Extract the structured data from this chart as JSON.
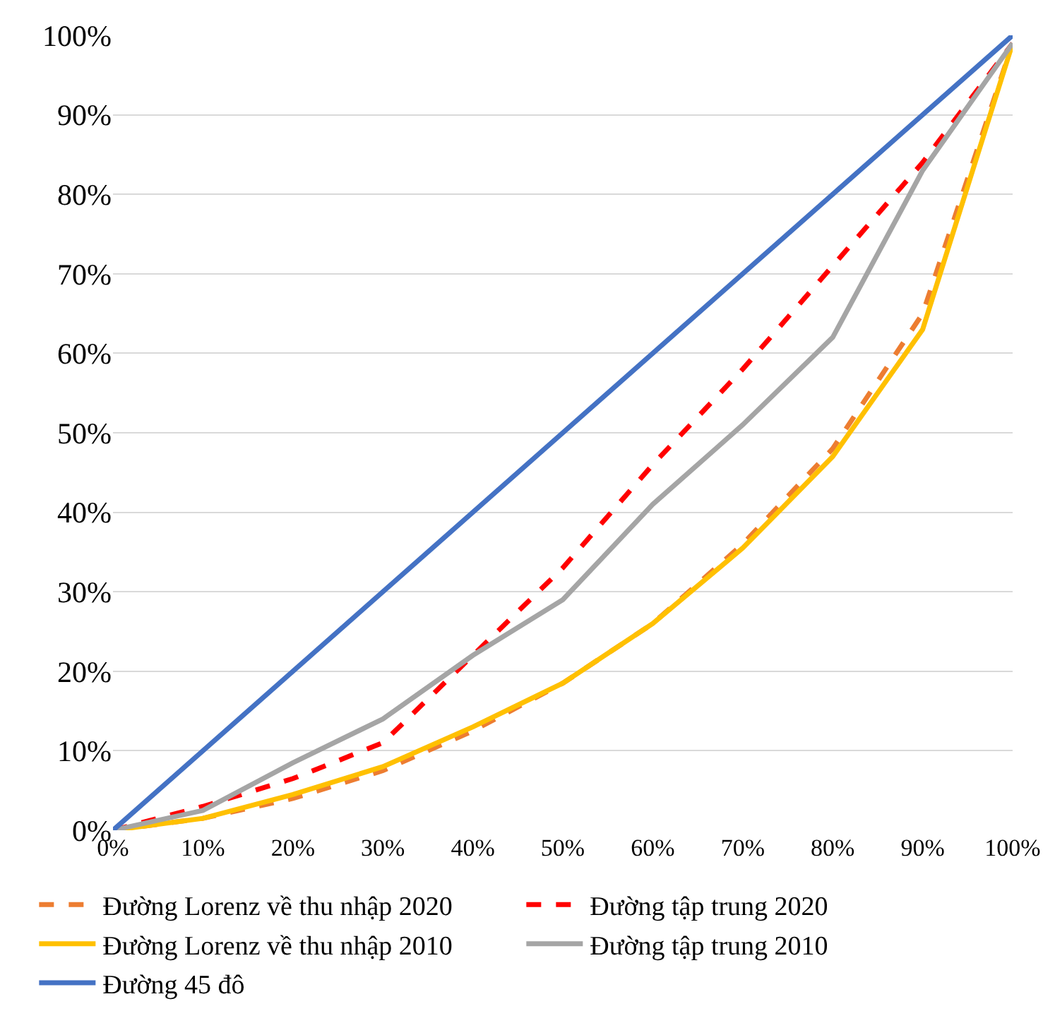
{
  "chart_data": {
    "type": "line",
    "x": [
      0,
      10,
      20,
      30,
      40,
      50,
      60,
      70,
      80,
      90,
      100
    ],
    "series": [
      {
        "name": "Đường Lorenz về thu nhập 2020",
        "color": "#ed7d31",
        "line_style": "dashed",
        "values": [
          0,
          1.5,
          4,
          7.5,
          12.5,
          18.5,
          26,
          36,
          48,
          65,
          99
        ]
      },
      {
        "name": "Đường tập trung 2020",
        "color": "#ff0000",
        "line_style": "dashed",
        "values": [
          0,
          3,
          6.5,
          11,
          22,
          33,
          46,
          58,
          71,
          84,
          99
        ]
      },
      {
        "name": "Đường Lorenz về thu nhập 2010",
        "color": "#ffc000",
        "line_style": "solid",
        "values": [
          0,
          1.5,
          4.5,
          8,
          13,
          18.5,
          26,
          35.5,
          47,
          63,
          99
        ]
      },
      {
        "name": "Đường tập trung 2010",
        "color": "#a5a5a5",
        "line_style": "solid",
        "values": [
          0,
          2.5,
          8.5,
          14,
          22,
          29,
          41,
          51,
          62,
          83,
          99
        ]
      },
      {
        "name": "Đường 45 đô",
        "color": "#4472c4",
        "line_style": "solid",
        "x": [
          0,
          100
        ],
        "values": [
          0,
          100
        ]
      }
    ],
    "xlim": [
      0,
      100
    ],
    "ylim": [
      0,
      100
    ],
    "xticks": [
      {
        "value": 0,
        "label": "0%"
      },
      {
        "value": 10,
        "label": "10%"
      },
      {
        "value": 20,
        "label": "20%"
      },
      {
        "value": 30,
        "label": "30%"
      },
      {
        "value": 40,
        "label": "40%"
      },
      {
        "value": 50,
        "label": "50%"
      },
      {
        "value": 60,
        "label": "60%"
      },
      {
        "value": 70,
        "label": "70%"
      },
      {
        "value": 80,
        "label": "80%"
      },
      {
        "value": 90,
        "label": "90%"
      },
      {
        "value": 100,
        "label": "100%"
      }
    ],
    "yticks": [
      {
        "value": 0,
        "label": "0%"
      },
      {
        "value": 10,
        "label": "10%"
      },
      {
        "value": 20,
        "label": "20%"
      },
      {
        "value": 30,
        "label": "30%"
      },
      {
        "value": 40,
        "label": "40%"
      },
      {
        "value": 50,
        "label": "50%"
      },
      {
        "value": 60,
        "label": "60%"
      },
      {
        "value": 70,
        "label": "70%"
      },
      {
        "value": 80,
        "label": "80%"
      },
      {
        "value": 90,
        "label": "90%"
      },
      {
        "value": 100,
        "label": "100%"
      }
    ],
    "grid": "y",
    "legend": "bottom",
    "marker": "none"
  }
}
